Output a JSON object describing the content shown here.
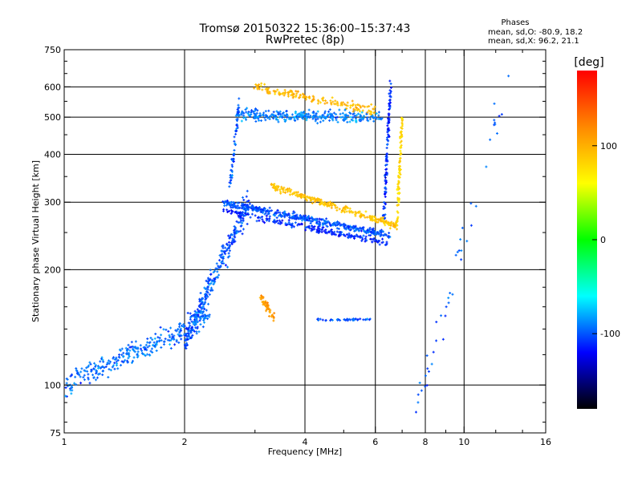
{
  "chart_data": {
    "type": "scatter",
    "title": "Tromsø 20150322 15:36:00–15:37:43",
    "subtitle": "RwPretec (8p)",
    "phases_info": {
      "heading": "Phases",
      "line_o": "mean, sd,O: -80.9, 18.2",
      "line_x": "mean, sd,X:  96.2, 21.1"
    },
    "xlabel": "Frequency [MHz]",
    "ylabel": "Stationary phase Virtual Height [km]",
    "x_scale": "log",
    "y_scale": "log",
    "xlim": [
      1,
      16
    ],
    "ylim": [
      75,
      750
    ],
    "x_ticks": [
      1,
      2,
      4,
      6,
      8,
      10,
      16
    ],
    "x_tick_labels": [
      "1",
      "2",
      "4",
      "6",
      "8",
      "10",
      "16"
    ],
    "x_minor_ticks": [
      3,
      5,
      7,
      9,
      12,
      14
    ],
    "y_ticks": [
      75,
      100,
      200,
      300,
      400,
      500,
      600,
      750
    ],
    "y_tick_labels": [
      "75",
      "100",
      "200",
      "300",
      "400",
      "500",
      "600",
      "750"
    ],
    "y_minor_ticks": [
      80,
      90,
      120,
      140,
      160,
      180,
      250,
      350,
      450,
      550,
      650,
      700
    ],
    "grid": true,
    "colorbar": {
      "label": "[deg]",
      "ticks": [
        100,
        0,
        -100
      ],
      "tick_labels": [
        "100",
        "0",
        "-100"
      ],
      "range": [
        -180,
        180
      ],
      "stops": [
        "#ff0000",
        "#ff8800",
        "#ffff00",
        "#00ff00",
        "#00ffff",
        "#0000ff",
        "#000000"
      ]
    },
    "clusters": [
      {
        "name": "o_lower_trace",
        "x": [
          1.0,
          2.3
        ],
        "y": [
          100,
          150
        ],
        "phase": -95,
        "n": 320,
        "spread_y": 0.1
      },
      {
        "name": "o_rising_wall",
        "x": [
          2.0,
          2.9
        ],
        "y": [
          130,
          300
        ],
        "phase": -100,
        "n": 300,
        "spread_y": 0.12
      },
      {
        "name": "o_f_layer",
        "x": [
          2.5,
          6.6
        ],
        "y": [
          300,
          245
        ],
        "phase": -100,
        "n": 420,
        "spread_y": 0.03
      },
      {
        "name": "o_f_layer_2nd",
        "x": [
          2.5,
          6.4
        ],
        "y": [
          285,
          235
        ],
        "phase": -110,
        "n": 200,
        "spread_y": 0.03
      },
      {
        "name": "o_cusp",
        "x": [
          6.3,
          6.55
        ],
        "y": [
          270,
          620
        ],
        "phase": -110,
        "n": 120,
        "spread_y": 0.02
      },
      {
        "name": "o_multihop",
        "x": [
          2.7,
          6.2
        ],
        "y": [
          510,
          500
        ],
        "phase": -90,
        "n": 300,
        "spread_y": 0.05
      },
      {
        "name": "o_multihop_cusp",
        "x": [
          2.6,
          2.75
        ],
        "y": [
          330,
          560
        ],
        "phase": -100,
        "n": 60,
        "spread_y": 0.03
      },
      {
        "name": "x_f_layer",
        "x": [
          3.3,
          6.8
        ],
        "y": [
          330,
          260
        ],
        "phase": 90,
        "n": 260,
        "spread_y": 0.03
      },
      {
        "name": "x_cusp",
        "x": [
          6.8,
          7.0
        ],
        "y": [
          260,
          500
        ],
        "phase": 80,
        "n": 90,
        "spread_y": 0.02
      },
      {
        "name": "x_multihop",
        "x": [
          3.0,
          6.0
        ],
        "y": [
          600,
          520
        ],
        "phase": 95,
        "n": 160,
        "spread_y": 0.04
      },
      {
        "name": "x_e_blob",
        "x": [
          3.1,
          3.35
        ],
        "y": [
          170,
          150
        ],
        "phase": 110,
        "n": 50,
        "spread_y": 0.04
      },
      {
        "name": "e_layer_band",
        "x": [
          4.3,
          5.8
        ],
        "y": [
          148,
          148
        ],
        "phase": -100,
        "n": 40,
        "spread_y": 0.01
      },
      {
        "name": "scatter_high_freq",
        "x": [
          7.5,
          13.0
        ],
        "y": [
          80,
          650
        ],
        "phase": -100,
        "n": 45,
        "spread_y": 0.2
      }
    ]
  }
}
